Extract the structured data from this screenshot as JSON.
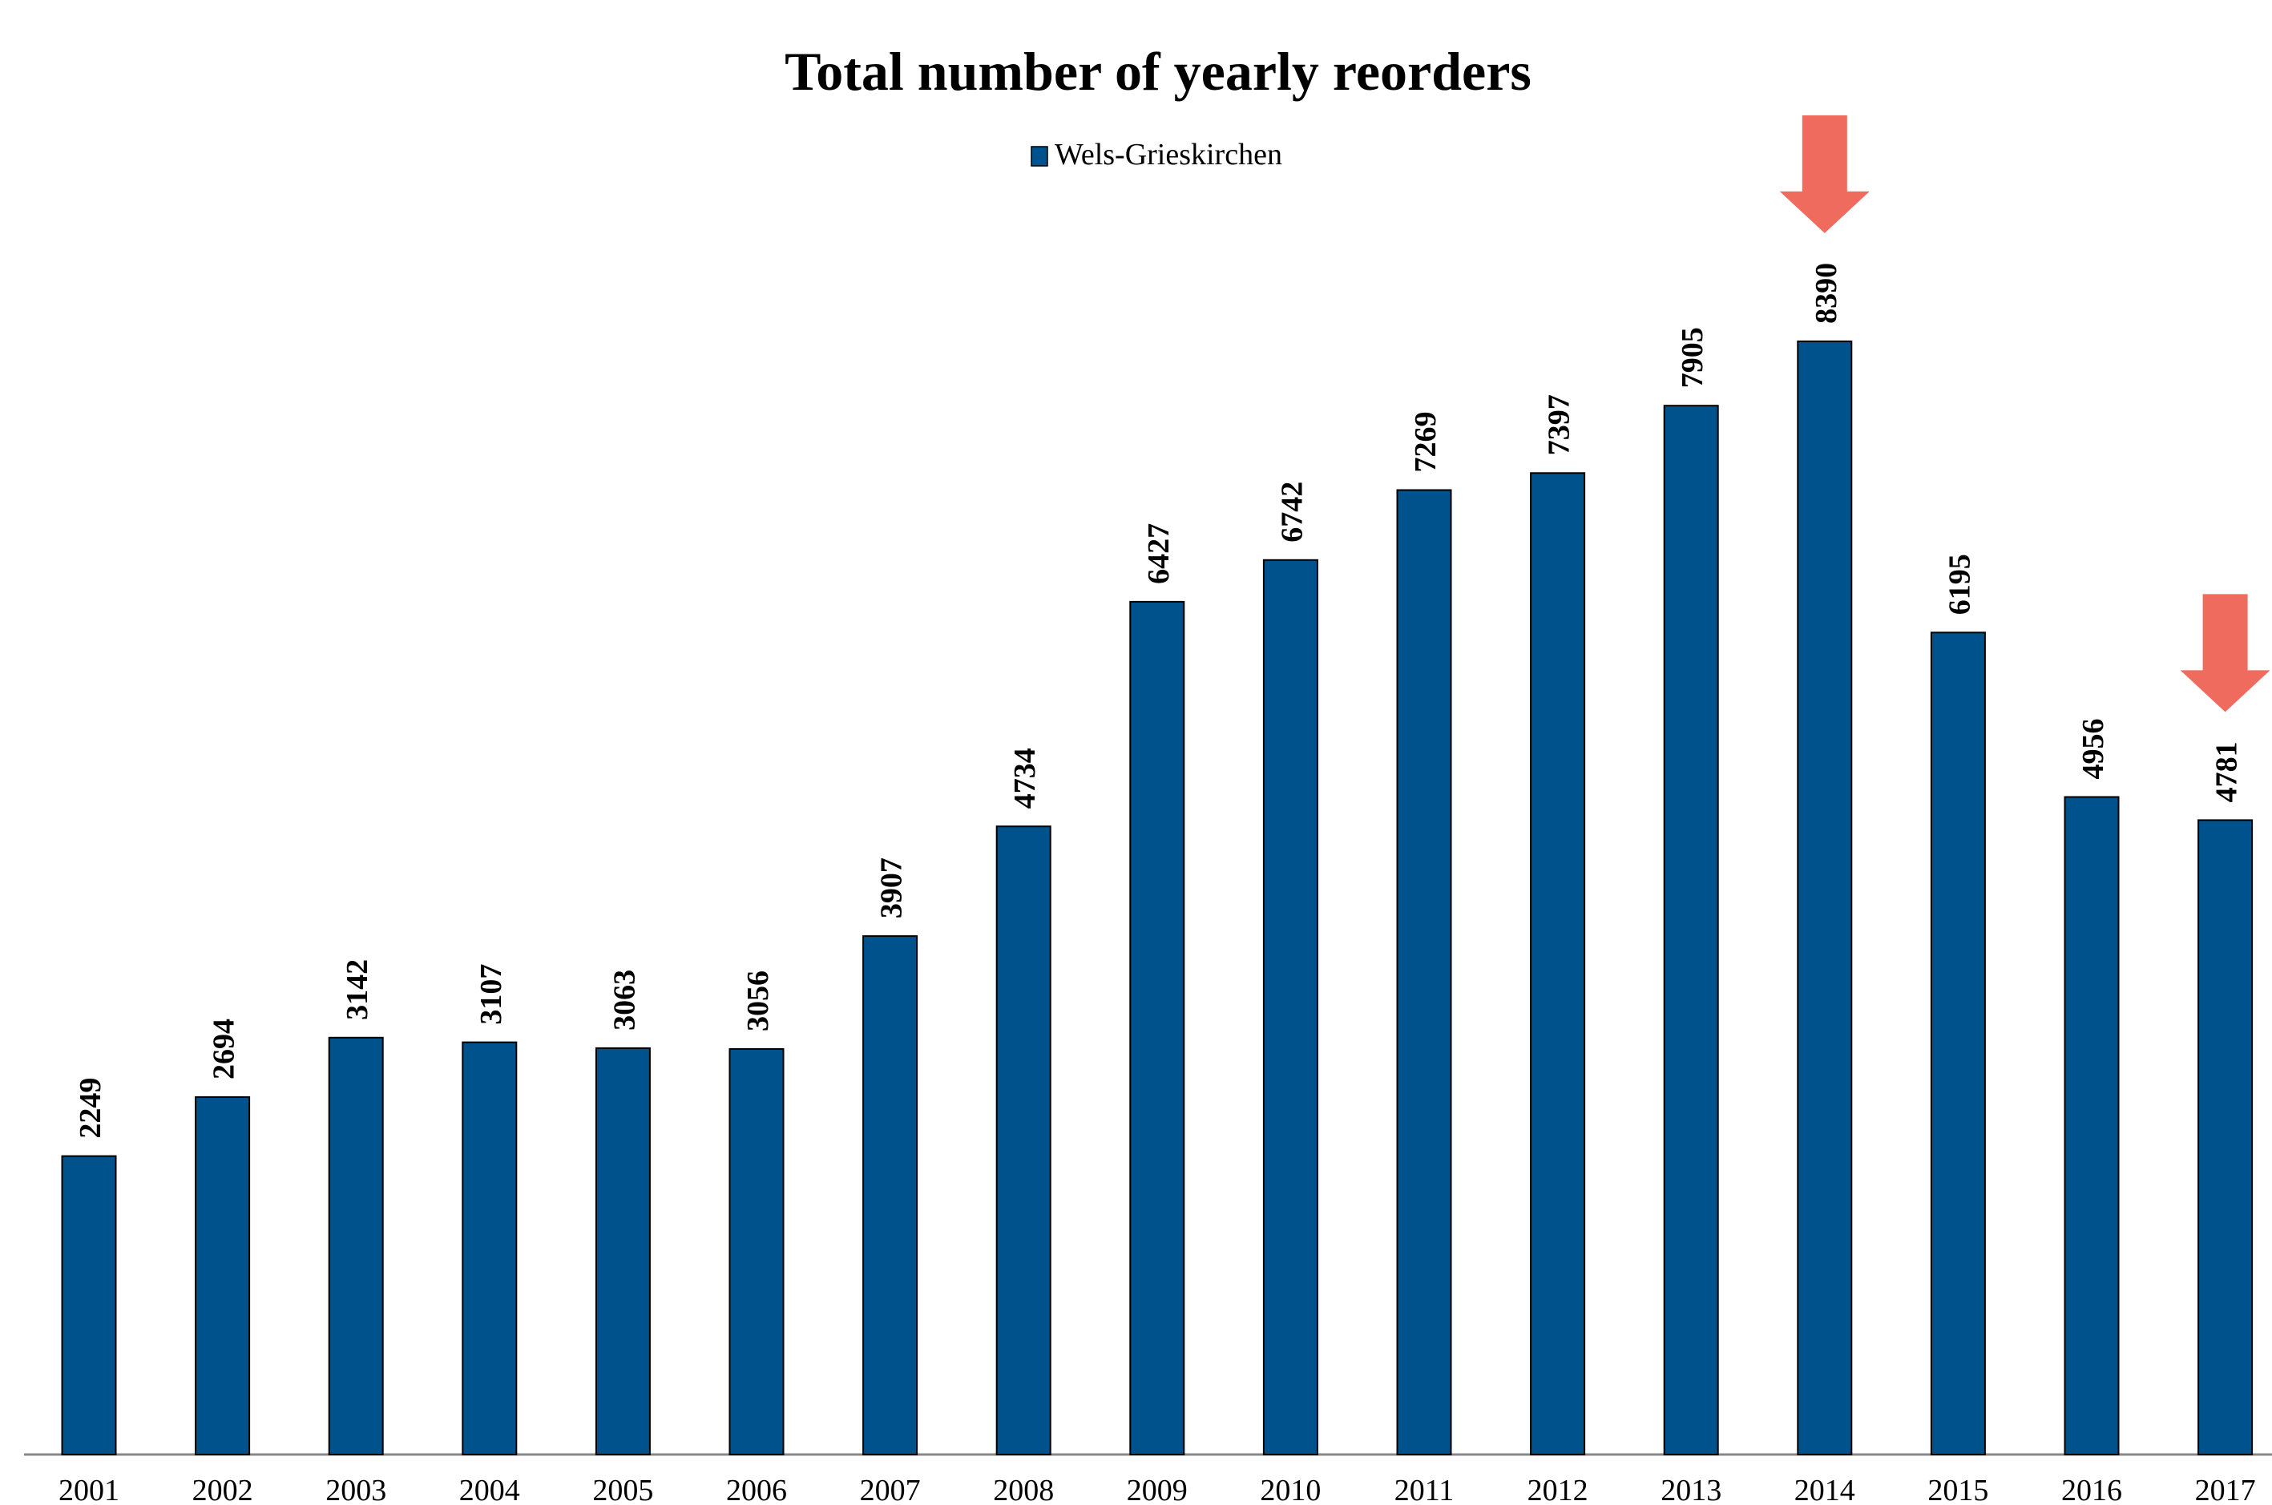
{
  "chart_data": {
    "type": "bar",
    "title": "Total number of yearly reorders",
    "categories": [
      "2001",
      "2002",
      "2003",
      "2004",
      "2005",
      "2006",
      "2007",
      "2008",
      "2009",
      "2010",
      "2011",
      "2012",
      "2013",
      "2014",
      "2015",
      "2016",
      "2017"
    ],
    "series": [
      {
        "name": "Wels-Grieskirchen",
        "values": [
          2249,
          2694,
          3142,
          3107,
          3063,
          3056,
          3907,
          4734,
          6427,
          6742,
          7269,
          7397,
          7905,
          8390,
          6195,
          4956,
          4781
        ]
      }
    ],
    "ylim": [
      0,
      10600
    ],
    "grid": false,
    "legend": "top-center",
    "data_labels": true,
    "annotations": [
      {
        "type": "arrow-down",
        "category": "2014"
      },
      {
        "type": "arrow-down",
        "category": "2017"
      }
    ],
    "colors": {
      "bar": "#00528C",
      "bar_outline": "#000000",
      "arrow": "#EE6B5D",
      "axis": "#888888"
    }
  }
}
